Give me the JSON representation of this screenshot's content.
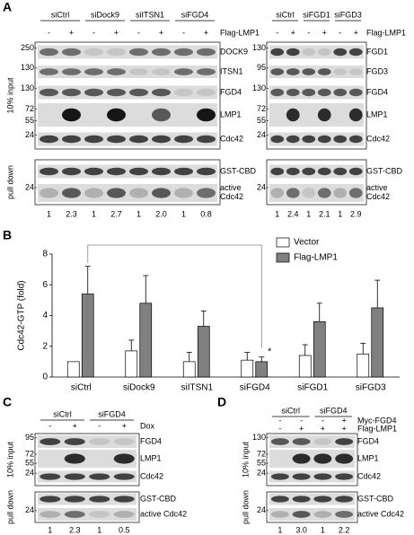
{
  "panel_a": {
    "label": "A",
    "blots": [
      {
        "groups": [
          "siCtrl",
          "siDock9",
          "siITSN1",
          "siFGD4"
        ],
        "treatments": [
          {
            "label": "Flag-LMP1",
            "signs": [
              "-",
              "+",
              "-",
              "+",
              "-",
              "+",
              "-",
              "+"
            ]
          }
        ],
        "input_label": "10% input",
        "input_rows": [
          {
            "name": "DOCK9",
            "markers": [
              "250"
            ]
          },
          {
            "name": "ITSN1",
            "markers": [
              "130"
            ]
          },
          {
            "name": "FGD4",
            "markers": [
              "130"
            ]
          },
          {
            "name": "LMP1",
            "markers": [
              "72",
              "55"
            ]
          },
          {
            "name": "Cdc42",
            "markers": [
              "24"
            ]
          }
        ],
        "pulldown_label": "pull down",
        "pulldown_rows": [
          {
            "name": "GST-CBD",
            "markers": []
          },
          {
            "name": [
              "active",
              "Cdc42"
            ],
            "markers": [
              "24"
            ]
          }
        ],
        "quant": [
          "1",
          "2.3",
          "1",
          "2.7",
          "1",
          "2.0",
          "1",
          "0.8"
        ]
      },
      {
        "groups": [
          "siCtrl",
          "siFGD1",
          "siFGD3"
        ],
        "treatments": [
          {
            "label": "Flag-LMP1",
            "signs": [
              "-",
              "+",
              "-",
              "+",
              "-",
              "+"
            ]
          }
        ],
        "input_rows": [
          {
            "name": "FGD1",
            "markers": [
              "130"
            ]
          },
          {
            "name": "FGD3",
            "markers": [
              "95"
            ]
          },
          {
            "name": "FGD4",
            "markers": [
              "130"
            ]
          },
          {
            "name": "LMP1",
            "markers": [
              "72",
              "55"
            ]
          },
          {
            "name": "Cdc42",
            "markers": [
              "24"
            ]
          }
        ],
        "pulldown_rows": [
          {
            "name": "GST-CBD",
            "markers": []
          },
          {
            "name": [
              "active",
              "Cdc42"
            ],
            "markers": [
              "24"
            ]
          }
        ],
        "quant": [
          "1",
          "2.4",
          "1",
          "2.1",
          "1",
          "2.9"
        ]
      }
    ]
  },
  "chart_data": {
    "panel_label": "B",
    "type": "bar",
    "ylabel": "Cdc42-GTP (fold)",
    "categories": [
      "siCtrl",
      "siDock9",
      "siITSN1",
      "siFGD4",
      "siFGD1",
      "siFGD3"
    ],
    "series": [
      {
        "name": "Vector",
        "color": "#ffffff",
        "values": [
          1,
          1.7,
          1.0,
          1.1,
          1.4,
          1.5
        ],
        "errors": [
          null,
          0.7,
          0.6,
          0.5,
          0.7,
          0.7
        ]
      },
      {
        "name": "Flag-LMP1",
        "color": "#808080",
        "values": [
          5.4,
          4.8,
          3.3,
          1.0,
          3.6,
          4.5
        ],
        "errors": [
          1.8,
          1.8,
          1.0,
          0.3,
          1.2,
          1.8
        ]
      }
    ],
    "ylim": [
      0,
      8
    ],
    "yticks": [
      0,
      2,
      4,
      6,
      8
    ],
    "legend": "upper right",
    "annotation": "*"
  },
  "panel_c": {
    "label": "C",
    "blot": {
      "groups": [
        "siCtrl",
        "siFGD4"
      ],
      "treatments": [
        {
          "label": "Dox",
          "signs": [
            "-",
            "+",
            "-",
            "+"
          ]
        }
      ],
      "input_label": "10% input",
      "input_rows": [
        {
          "name": "FGD4",
          "markers": [
            "95"
          ]
        },
        {
          "name": "LMP1",
          "markers": [
            "72",
            "55"
          ]
        },
        {
          "name": "Cdc42",
          "markers": [
            "24"
          ]
        }
      ],
      "pulldown_label": "pull down",
      "pulldown_rows": [
        {
          "name": "GST-CBD",
          "markers": []
        },
        {
          "name": "active Cdc42",
          "markers": [
            "24"
          ]
        }
      ],
      "quant": [
        "1",
        "2.3",
        "1",
        "0.5"
      ]
    }
  },
  "panel_d": {
    "label": "D",
    "blot": {
      "groups": [
        "siCtrl",
        "siFGD4"
      ],
      "treatments": [
        {
          "label": "Myc-FGD4",
          "signs": [
            "-",
            "-",
            "-",
            "+"
          ]
        },
        {
          "label": "Flag-LMP1",
          "signs": [
            "-",
            "+",
            "+",
            "+"
          ]
        }
      ],
      "input_label": "10% input",
      "input_rows": [
        {
          "name": "FGD4",
          "markers": [
            "130"
          ]
        },
        {
          "name": "LMP1",
          "markers": [
            "72",
            "55"
          ]
        },
        {
          "name": "Cdc42",
          "markers": [
            "24"
          ]
        }
      ],
      "pulldown_label": "pull down",
      "pulldown_rows": [
        {
          "name": "GST-CBD",
          "markers": []
        },
        {
          "name": "active Cdc42",
          "markers": [
            "24"
          ]
        }
      ],
      "quant": [
        "1",
        "3.0",
        "1",
        "2.2"
      ]
    }
  }
}
